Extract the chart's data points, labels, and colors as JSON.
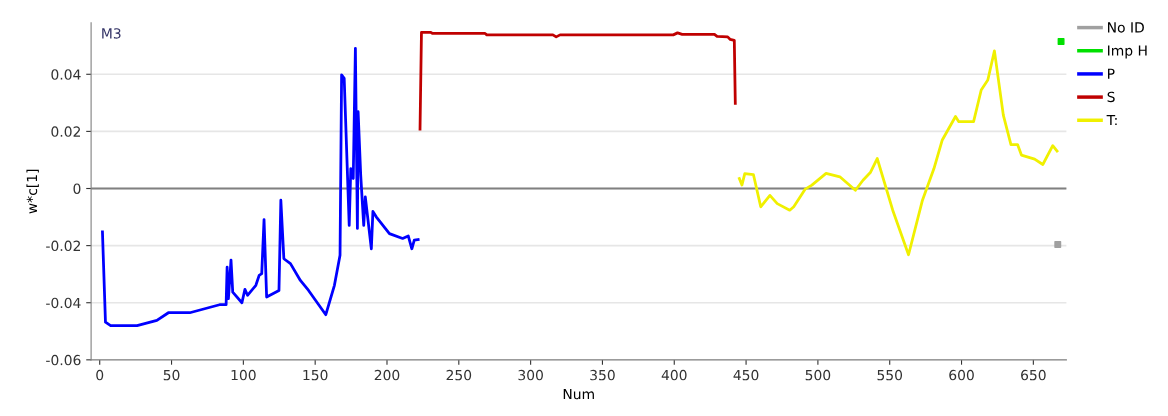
{
  "chart_data": {
    "type": "line",
    "xlabel": "Num",
    "ylabel": "w*c[1]",
    "annotations": [
      "M3"
    ],
    "xlim": [
      -6,
      673
    ],
    "ylim": [
      -0.06,
      0.058
    ],
    "xticks": [
      0,
      50,
      100,
      150,
      200,
      250,
      300,
      350,
      400,
      450,
      500,
      550,
      600,
      650
    ],
    "yticks": [
      {
        "value": -0.06,
        "label": "-0.06"
      },
      {
        "value": -0.04,
        "label": "-0.04"
      },
      {
        "value": -0.02,
        "label": "-0.02"
      },
      {
        "value": 0,
        "label": "0"
      },
      {
        "value": 0.02,
        "label": "0.02"
      },
      {
        "value": 0.04,
        "label": "0.04"
      }
    ],
    "grid": "y",
    "legend": "right",
    "marker": "none",
    "line_style": "solid",
    "ref_lines": [
      {
        "axis": "y",
        "value": 0,
        "color": "#808080"
      }
    ],
    "series": [
      {
        "name": "No ID",
        "type": "scatter",
        "marker": "square",
        "color": "#a0a0a0",
        "x": [
          667
        ],
        "values": [
          -0.0196
        ]
      },
      {
        "name": "Imp H",
        "type": "scatter",
        "marker": "square",
        "color": "#00e000",
        "x": [
          669.3
        ],
        "values": [
          0.0515
        ]
      },
      {
        "name": "P",
        "color": "#0000ff",
        "x": [
          1.9,
          4,
          7.6,
          26,
          39.8,
          47.8,
          62.7,
          83.4,
          88,
          88.7,
          89.6,
          91.4,
          92.6,
          99,
          101.1,
          102.9,
          108.7,
          111,
          112.8,
          114.4,
          116.2,
          124.8,
          126.1,
          128.2,
          132.8,
          139.7,
          145.4,
          157.4,
          163.4,
          167.3,
          168.4,
          170.2,
          173.7,
          174.8,
          176.5,
          178,
          179.4,
          179.9,
          181.7,
          183.8,
          184.9,
          189.1,
          190.2,
          192.5,
          201.7,
          210.9,
          214.8,
          217.3,
          219,
          221.7
        ],
        "values": [
          -0.0152,
          -0.0468,
          -0.048,
          -0.048,
          -0.0462,
          -0.0435,
          -0.0435,
          -0.0407,
          -0.0407,
          -0.0275,
          -0.0386,
          -0.0251,
          -0.0363,
          -0.04,
          -0.0353,
          -0.0374,
          -0.0339,
          -0.0304,
          -0.0298,
          -0.0109,
          -0.038,
          -0.0357,
          -0.0041,
          -0.0246,
          -0.0263,
          -0.0322,
          -0.0357,
          -0.0442,
          -0.0339,
          -0.0234,
          0.0398,
          0.0386,
          -0.0129,
          0.007,
          0.0035,
          0.0491,
          -0.014,
          0.0269,
          0.0047,
          -0.0129,
          -0.0029,
          -0.0211,
          -0.008,
          -0.0099,
          -0.0158,
          -0.0175,
          -0.0166,
          -0.0211,
          -0.0181,
          -0.0179
        ]
      },
      {
        "name": "S",
        "color": "#c00000",
        "x": [
          223,
          224,
          230.5,
          231.6,
          268.3,
          269.5,
          315.5,
          317.8,
          320.5,
          399.3,
          402.3,
          405.5,
          428,
          429.8,
          437.2,
          439,
          441.8,
          442.5
        ],
        "values": [
          0.0208,
          0.0547,
          0.0547,
          0.0543,
          0.0543,
          0.0538,
          0.0538,
          0.0531,
          0.0538,
          0.0538,
          0.0545,
          0.054,
          0.054,
          0.0533,
          0.0531,
          0.0522,
          0.0519,
          0.0298
        ]
      },
      {
        "name": "T:",
        "color": "#f0f000",
        "x": [
          445.3,
          447.1,
          449.1,
          455.1,
          460.2,
          466.6,
          471.7,
          480.4,
          483.2,
          491.2,
          495.8,
          505.7,
          515.3,
          526.1,
          531.4,
          536.5,
          541.3,
          552.1,
          563.1,
          572.8,
          580.8,
          586.6,
          595.8,
          598.1,
          608.4,
          613.7,
          618.3,
          622.9,
          629.1,
          634.4,
          639,
          641.7,
          650.9,
          656.6,
          663.5,
          666.5
        ],
        "values": [
          0.0035,
          0.0012,
          0.0052,
          0.0049,
          -0.0064,
          -0.0024,
          -0.0053,
          -0.0076,
          -0.0064,
          -0.0002,
          0.0012,
          0.0053,
          0.0041,
          -0.0006,
          0.0029,
          0.0056,
          0.0105,
          -0.0076,
          -0.0232,
          -0.0041,
          0.007,
          0.017,
          0.0252,
          0.0234,
          0.0234,
          0.0345,
          0.038,
          0.0482,
          0.0257,
          0.0154,
          0.0154,
          0.0117,
          0.0103,
          0.0084,
          0.015,
          0.0131
        ]
      }
    ]
  }
}
